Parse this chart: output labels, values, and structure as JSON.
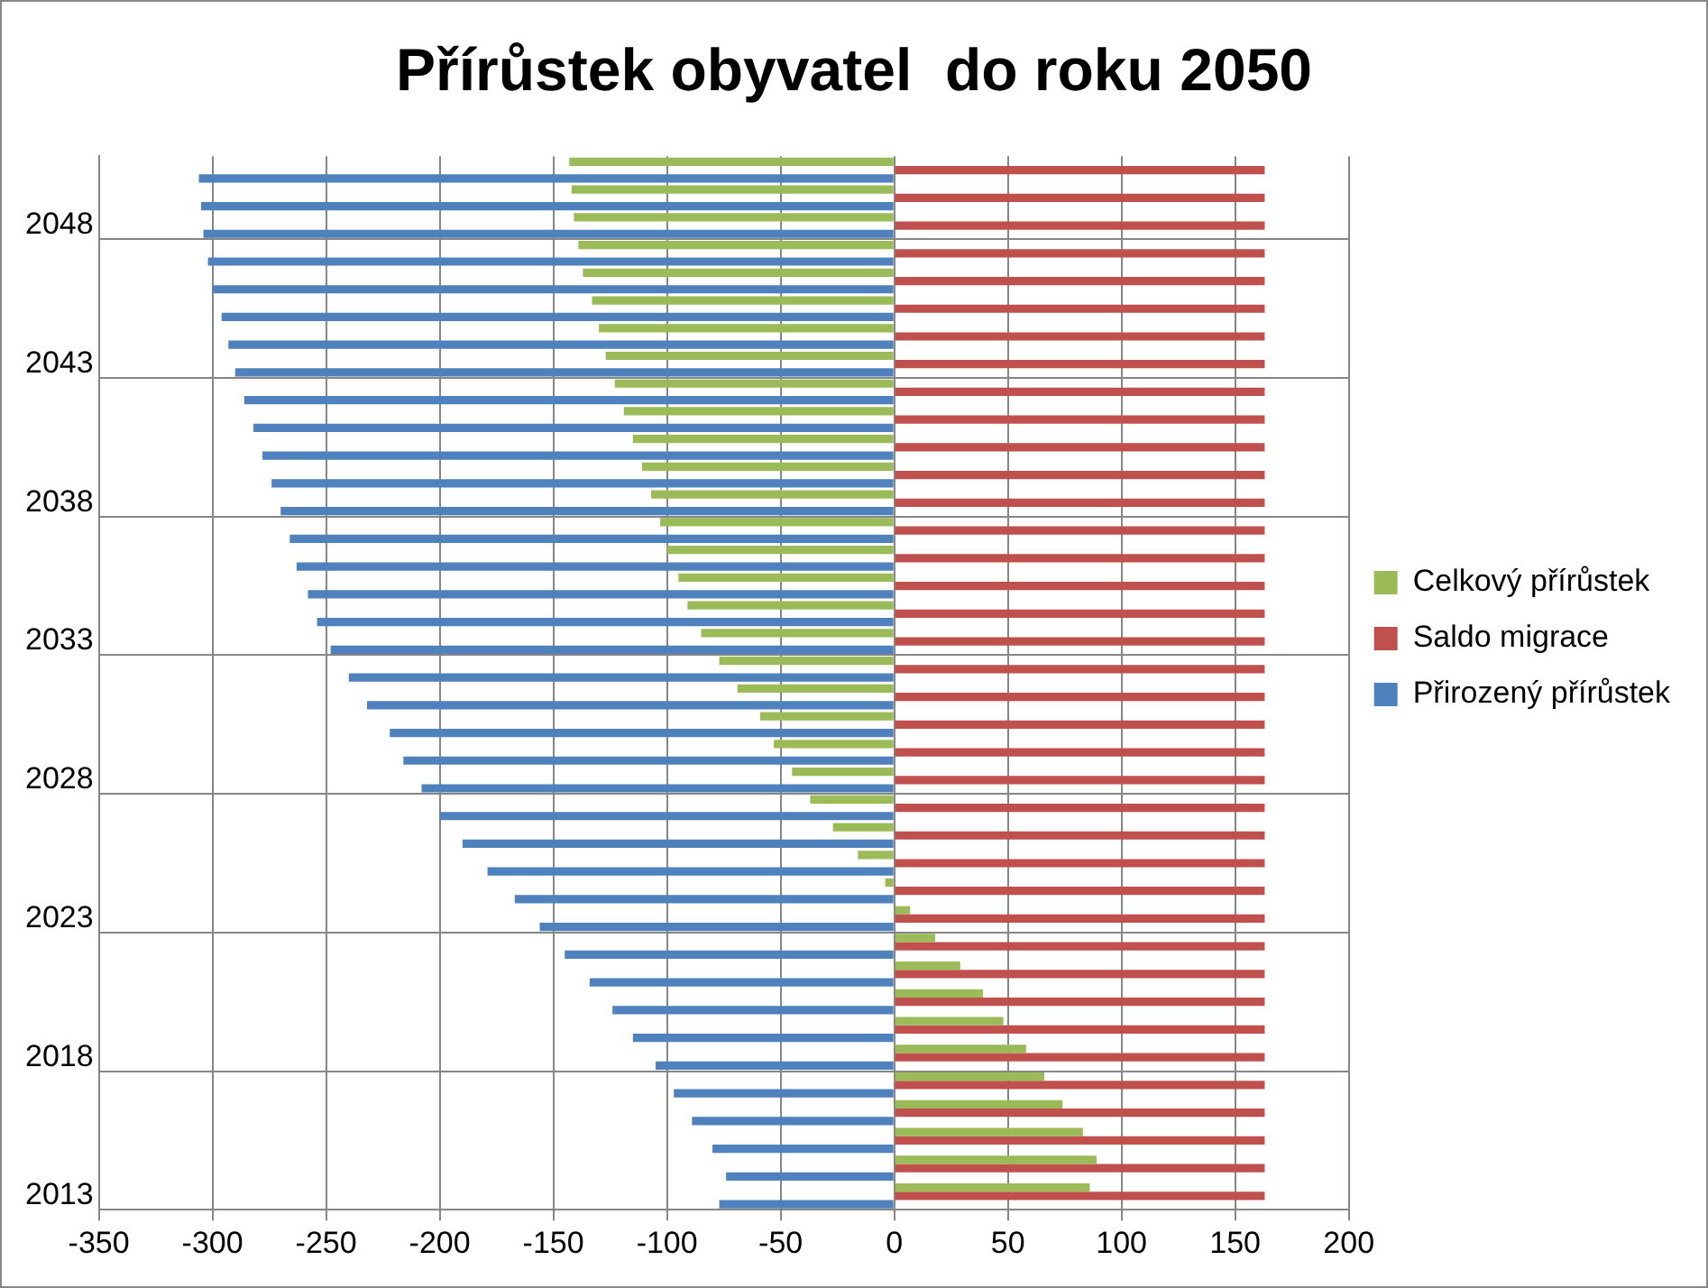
{
  "chart_data": {
    "type": "bar",
    "orientation": "horizontal",
    "title": "Přírůstek obyvatel  do roku 2050",
    "categories": [
      null,
      null,
      "2048",
      null,
      null,
      null,
      null,
      "2043",
      null,
      null,
      null,
      null,
      "2038",
      null,
      null,
      null,
      null,
      "2033",
      null,
      null,
      null,
      null,
      "2028",
      null,
      null,
      null,
      null,
      "2023",
      null,
      null,
      null,
      null,
      "2018",
      null,
      null,
      null,
      null,
      "2013"
    ],
    "series": [
      {
        "name": "Celkový přírůstek",
        "color": "#9bbb59",
        "values": [
          -143,
          -142,
          -141,
          -139,
          -137,
          -133,
          -130,
          -127,
          -123,
          -119,
          -115,
          -111,
          -107,
          -103,
          -100,
          -95,
          -91,
          -85,
          -77,
          -69,
          -59,
          -53,
          -45,
          -37,
          -27,
          -16,
          -4,
          7,
          18,
          29,
          39,
          48,
          58,
          66,
          74,
          83,
          89,
          86
        ]
      },
      {
        "name": "Saldo migrace",
        "color": "#c0504d",
        "values": [
          163,
          163,
          163,
          163,
          163,
          163,
          163,
          163,
          163,
          163,
          163,
          163,
          163,
          163,
          163,
          163,
          163,
          163,
          163,
          163,
          163,
          163,
          163,
          163,
          163,
          163,
          163,
          163,
          163,
          163,
          163,
          163,
          163,
          163,
          163,
          163,
          163,
          163
        ]
      },
      {
        "name": "Přirozený přírůstek",
        "color": "#4f81bd",
        "values": [
          -306,
          -305,
          -304,
          -302,
          -300,
          -296,
          -293,
          -290,
          -286,
          -282,
          -278,
          -274,
          -270,
          -266,
          -263,
          -258,
          -254,
          -248,
          -240,
          -232,
          -222,
          -216,
          -208,
          -200,
          -190,
          -179,
          -167,
          -156,
          -145,
          -134,
          -124,
          -115,
          -105,
          -97,
          -89,
          -80,
          -74,
          -77
        ]
      }
    ],
    "xlim": [
      -350,
      200
    ],
    "xticks": [
      -350,
      -300,
      -250,
      -200,
      -150,
      -100,
      -50,
      0,
      50,
      100,
      150,
      200
    ],
    "grid": true,
    "legend": "right"
  }
}
